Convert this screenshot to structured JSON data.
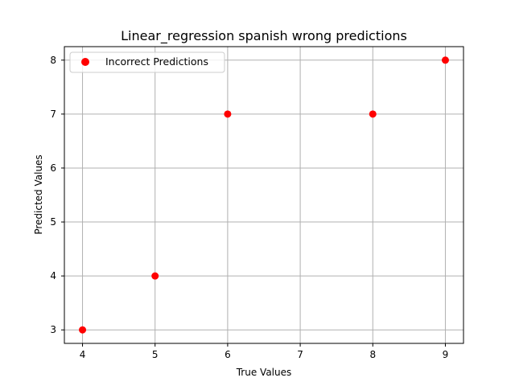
{
  "chart_data": {
    "type": "scatter",
    "title": "Linear_regression spanish wrong predictions",
    "xlabel": "True Values",
    "ylabel": "Predicted Values",
    "xlim": [
      3.75,
      9.25
    ],
    "ylim": [
      2.75,
      8.25
    ],
    "xticks": [
      "4",
      "5",
      "6",
      "7",
      "8",
      "9"
    ],
    "yticks": [
      "3",
      "4",
      "5",
      "6",
      "7",
      "8"
    ],
    "grid": true,
    "legend_position": "top-left",
    "series": [
      {
        "name": "Incorrect Predictions",
        "color": "#ff0000",
        "points": [
          {
            "x": 4,
            "y": 3
          },
          {
            "x": 5,
            "y": 4
          },
          {
            "x": 6,
            "y": 7
          },
          {
            "x": 8,
            "y": 7
          },
          {
            "x": 9,
            "y": 8
          }
        ]
      }
    ]
  }
}
